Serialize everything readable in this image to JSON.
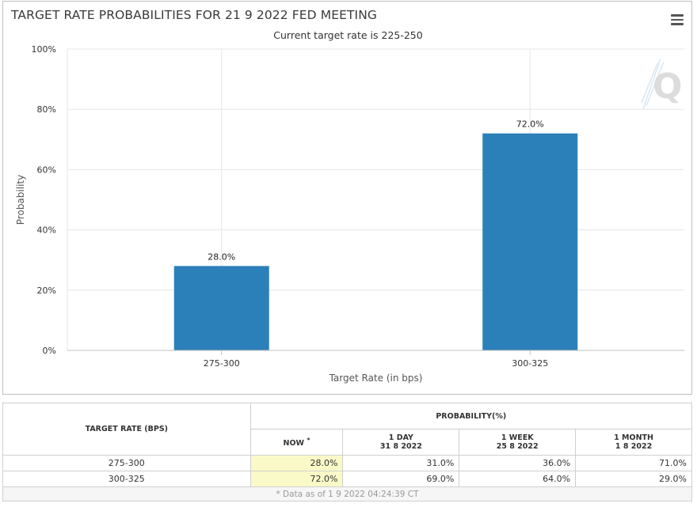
{
  "chart_data": {
    "type": "bar",
    "title": "TARGET RATE PROBABILITIES FOR 21 9 2022 FED MEETING",
    "subtitle": "Current target rate is 225-250",
    "xlabel": "Target Rate (in bps)",
    "ylabel": "Probability",
    "categories": [
      "275-300",
      "300-325"
    ],
    "values": [
      28.0,
      72.0
    ],
    "value_labels": [
      "28.0%",
      "72.0%"
    ],
    "ylim": [
      0,
      100
    ],
    "yticks": [
      0,
      20,
      40,
      60,
      80,
      100
    ],
    "ytick_labels": [
      "0%",
      "20%",
      "40%",
      "60%",
      "80%",
      "100%"
    ],
    "grid": true,
    "bar_color": "#2b80b9"
  },
  "table": {
    "rate_header": "TARGET RATE (BPS)",
    "prob_header": "PROBABILITY(%)",
    "columns": [
      {
        "label": "NOW",
        "sup": "*",
        "date": ""
      },
      {
        "label": "1 DAY",
        "date": "31 8 2022"
      },
      {
        "label": "1 WEEK",
        "date": "25 8 2022"
      },
      {
        "label": "1 MONTH",
        "date": "1 8 2022"
      }
    ],
    "rows": [
      {
        "rate": "275-300",
        "values": [
          "28.0%",
          "31.0%",
          "36.0%",
          "71.0%"
        ]
      },
      {
        "rate": "300-325",
        "values": [
          "72.0%",
          "69.0%",
          "64.0%",
          "29.0%"
        ]
      }
    ],
    "footer": "* Data as of 1 9 2022 04:24:39 CT"
  },
  "icons": {
    "menu": "hamburger-menu-icon",
    "watermark": "cme-q-logo"
  }
}
